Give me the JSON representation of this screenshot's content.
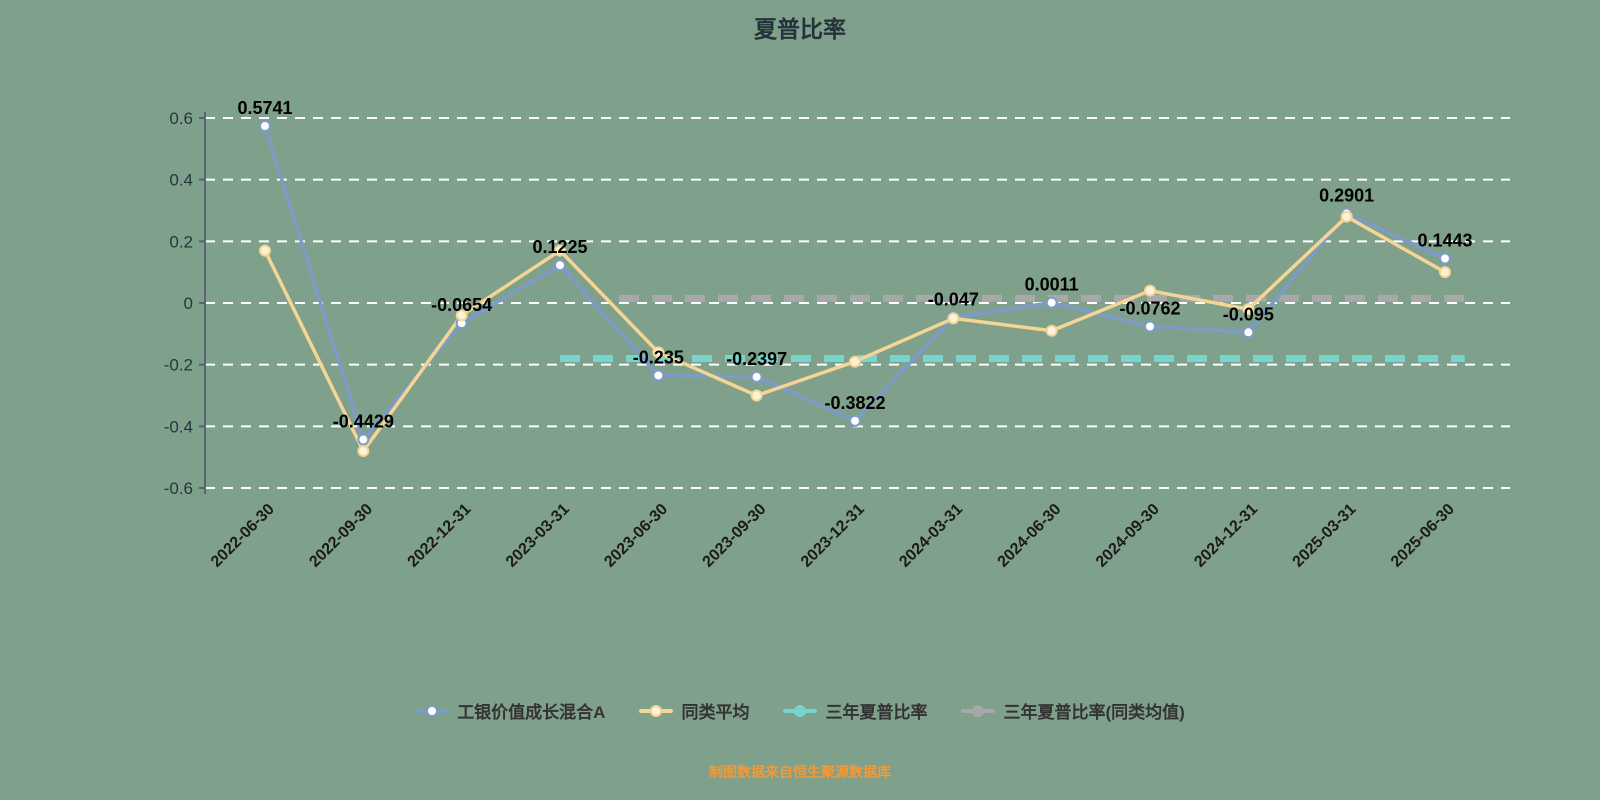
{
  "title": "夏普比率",
  "footer": "制图数据来自恒生聚源数据库",
  "colors": {
    "background": "#7fa08a",
    "grid": "#ffffff",
    "axis": "#55666f",
    "tick_text": "#28363f",
    "xtick_text": "#1b1b1b",
    "label_text": "#000000",
    "title_text": "#24323c",
    "footer_text": "#f19a38"
  },
  "chart_data": {
    "type": "line",
    "title": "夏普比率",
    "categories": [
      "2022-06-30",
      "2022-09-30",
      "2022-12-31",
      "2023-03-31",
      "2023-06-30",
      "2023-09-30",
      "2023-12-31",
      "2024-03-31",
      "2024-06-30",
      "2024-09-30",
      "2024-12-31",
      "2025-03-31",
      "2025-06-30"
    ],
    "ylim": [
      -0.6,
      0.6
    ],
    "yticks": [
      0.6,
      0.4,
      0.2,
      0,
      -0.2,
      -0.4,
      -0.6
    ],
    "grid": "dashed-horizontal",
    "legend_position": "bottom",
    "series": [
      {
        "name": "工银价值成长混合A",
        "color": "#7d9bc8",
        "marker_fill": "#ffffff",
        "values": [
          0.5741,
          -0.4429,
          -0.0654,
          0.1225,
          -0.235,
          -0.2397,
          -0.3822,
          -0.047,
          0.0011,
          -0.0762,
          -0.095,
          0.2901,
          0.1443
        ],
        "labels": [
          "0.5741",
          "-0.4429",
          "-0.0654",
          "0.1225",
          "-0.235",
          "-0.2397",
          "-0.3822",
          "-0.047",
          "0.0011",
          "-0.0762",
          "-0.095",
          "0.2901",
          "0.1443"
        ]
      },
      {
        "name": "同类平均",
        "color": "#f5d593",
        "marker_fill": "#fdf3dd",
        "values": [
          0.17,
          -0.48,
          -0.04,
          0.17,
          -0.16,
          -0.3,
          -0.19,
          -0.05,
          -0.09,
          0.04,
          -0.02,
          0.28,
          0.1
        ],
        "labels": []
      }
    ],
    "reference_lines": [
      {
        "name": "三年夏普比率",
        "color": "#76d5cf",
        "value": -0.18,
        "start": 3.0,
        "end": 12.2
      },
      {
        "name": "三年夏普比率(同类均值)",
        "color": "#a8a8a8",
        "value": 0.015,
        "start": 3.6,
        "end": 12.2
      }
    ],
    "legend": [
      {
        "label": "工银价值成长混合A",
        "color": "#7d9bc8",
        "marker_fill": "#ffffff"
      },
      {
        "label": "同类平均",
        "color": "#f5d593",
        "marker_fill": "#fdf3dd"
      },
      {
        "label": "三年夏普比率",
        "color": "#76d5cf",
        "marker_fill": "#76d5cf"
      },
      {
        "label": "三年夏普比率(同类均值)",
        "color": "#a8a8a8",
        "marker_fill": "#a8a8a8"
      }
    ]
  }
}
